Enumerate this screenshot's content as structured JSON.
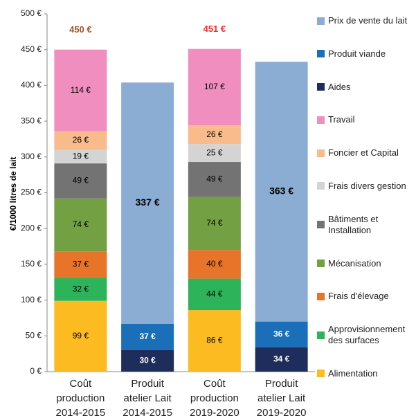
{
  "chart_data": {
    "type": "stacked_bar",
    "y_label": "€/1000 litres de lait",
    "categories": [
      [
        "Coût",
        "production",
        "2014-2015"
      ],
      [
        "Produit",
        "atelier Lait",
        "2014-2015"
      ],
      [
        "Coût",
        "production",
        "2019-2020"
      ],
      [
        "Produit",
        "atelier Lait",
        "2019-2020"
      ]
    ],
    "ylim": [
      0,
      500
    ],
    "yticks": [
      {
        "value": 0,
        "label": "0 €"
      },
      {
        "value": 50,
        "label": "50 €"
      },
      {
        "value": 100,
        "label": "100 €"
      },
      {
        "value": 150,
        "label": "150 €"
      },
      {
        "value": 200,
        "label": "200 €"
      },
      {
        "value": 250,
        "label": "250 €"
      },
      {
        "value": 300,
        "label": "300 €"
      },
      {
        "value": 350,
        "label": "350 €"
      },
      {
        "value": 400,
        "label": "400 €"
      },
      {
        "value": 450,
        "label": "450 €"
      },
      {
        "value": 500,
        "label": "500 €"
      }
    ],
    "grid": false,
    "legend": "right",
    "series": [
      {
        "name": "Alimentation",
        "color": "#fbbb21",
        "label_color": "#000000",
        "values": [
          99,
          null,
          86,
          null
        ],
        "value_labels": [
          "99 €",
          null,
          "86 €",
          null
        ]
      },
      {
        "name": "Approvisionnement des surfaces",
        "color": "#2db45b",
        "label_color": "#000000",
        "values": [
          32,
          null,
          44,
          null
        ],
        "value_labels": [
          "32 €",
          null,
          "44 €",
          null
        ]
      },
      {
        "name": "Frais d'élevage",
        "color": "#e8742a",
        "label_color": "#000000",
        "values": [
          37,
          null,
          40,
          null
        ],
        "value_labels": [
          "37 €",
          null,
          "40 €",
          null
        ]
      },
      {
        "name": "Mécanisation",
        "color": "#72a043",
        "label_color": "#000000",
        "values": [
          74,
          null,
          74,
          null
        ],
        "value_labels": [
          "74 €",
          null,
          "74 €",
          null
        ]
      },
      {
        "name": "Bâtiments et Installation",
        "color": "#737373",
        "label_color": "#000000",
        "values": [
          49,
          null,
          49,
          null
        ],
        "value_labels": [
          "49 €",
          null,
          "49 €",
          null
        ]
      },
      {
        "name": "Frais divers gestion",
        "color": "#d4d4d4",
        "label_color": "#000000",
        "values": [
          19,
          null,
          25,
          null
        ],
        "value_labels": [
          "19 €",
          null,
          "25 €",
          null
        ]
      },
      {
        "name": "Foncier et Capital",
        "color": "#f9bb8c",
        "label_color": "#000000",
        "values": [
          26,
          null,
          26,
          null
        ],
        "value_labels": [
          "26 €",
          null,
          "26 €",
          null
        ]
      },
      {
        "name": "Travail",
        "color": "#f08fbf",
        "label_color": "#000000",
        "values": [
          114,
          null,
          107,
          null
        ],
        "value_labels": [
          "114 €",
          null,
          "107 €",
          null
        ]
      },
      {
        "name": "Aides",
        "color": "#1f2d5c",
        "label_color": "#ffffff",
        "values": [
          null,
          30,
          null,
          34
        ],
        "value_labels": [
          null,
          "30 €",
          null,
          "34 €"
        ]
      },
      {
        "name": "Produit viande",
        "color": "#1a6fb8",
        "label_color": "#ffffff",
        "values": [
          null,
          37,
          null,
          36
        ],
        "value_labels": [
          null,
          "37 €",
          null,
          "36 €"
        ]
      },
      {
        "name": "Prix de vente du lait",
        "color": "#8badd4",
        "label_color": "#000000",
        "values": [
          null,
          337,
          null,
          363
        ],
        "value_labels": [
          null,
          "337 €",
          null,
          "363 €"
        ]
      }
    ],
    "totals": {
      "values": [
        450,
        null,
        451,
        null
      ],
      "value_labels": [
        "450 €",
        null,
        "451 €",
        null
      ],
      "colors": [
        "#a0522d",
        null,
        "#ff2a2a",
        null
      ]
    }
  }
}
